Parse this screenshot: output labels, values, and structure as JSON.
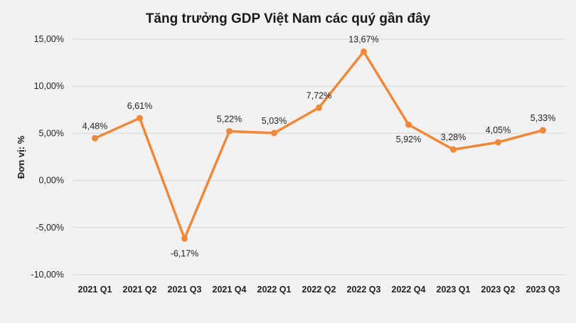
{
  "chart_data": {
    "type": "line",
    "title": "Tăng trưởng GDP Việt Nam các quý gần đây",
    "xlabel": "",
    "ylabel": "Đơn vị: %",
    "categories": [
      "2021 Q1",
      "2021 Q2",
      "2021 Q3",
      "2021 Q4",
      "2022 Q1",
      "2022 Q2",
      "2022 Q3",
      "2022 Q4",
      "2023 Q1",
      "2023 Q2",
      "2023 Q3"
    ],
    "values": [
      4.48,
      6.61,
      -6.17,
      5.22,
      5.03,
      7.72,
      13.67,
      5.92,
      3.28,
      4.05,
      5.33
    ],
    "data_labels": [
      "4,48%",
      "6,61%",
      "-6,17%",
      "5,22%",
      "5,03%",
      "7,72%",
      "13,67%",
      "5,92%",
      "3,28%",
      "4,05%",
      "5,33%"
    ],
    "label_positions": [
      "above",
      "above",
      "below",
      "above",
      "above",
      "above",
      "above",
      "below",
      "above",
      "above",
      "above"
    ],
    "ylim": [
      -10,
      15
    ],
    "yticks": [
      -10,
      -5,
      0,
      5,
      10,
      15
    ],
    "ytick_labels": [
      "-10,00%",
      "-5,00%",
      "0,00%",
      "5,00%",
      "10,00%",
      "15,00%"
    ],
    "grid": true,
    "legend": "none",
    "line_color": "#f0883a"
  }
}
